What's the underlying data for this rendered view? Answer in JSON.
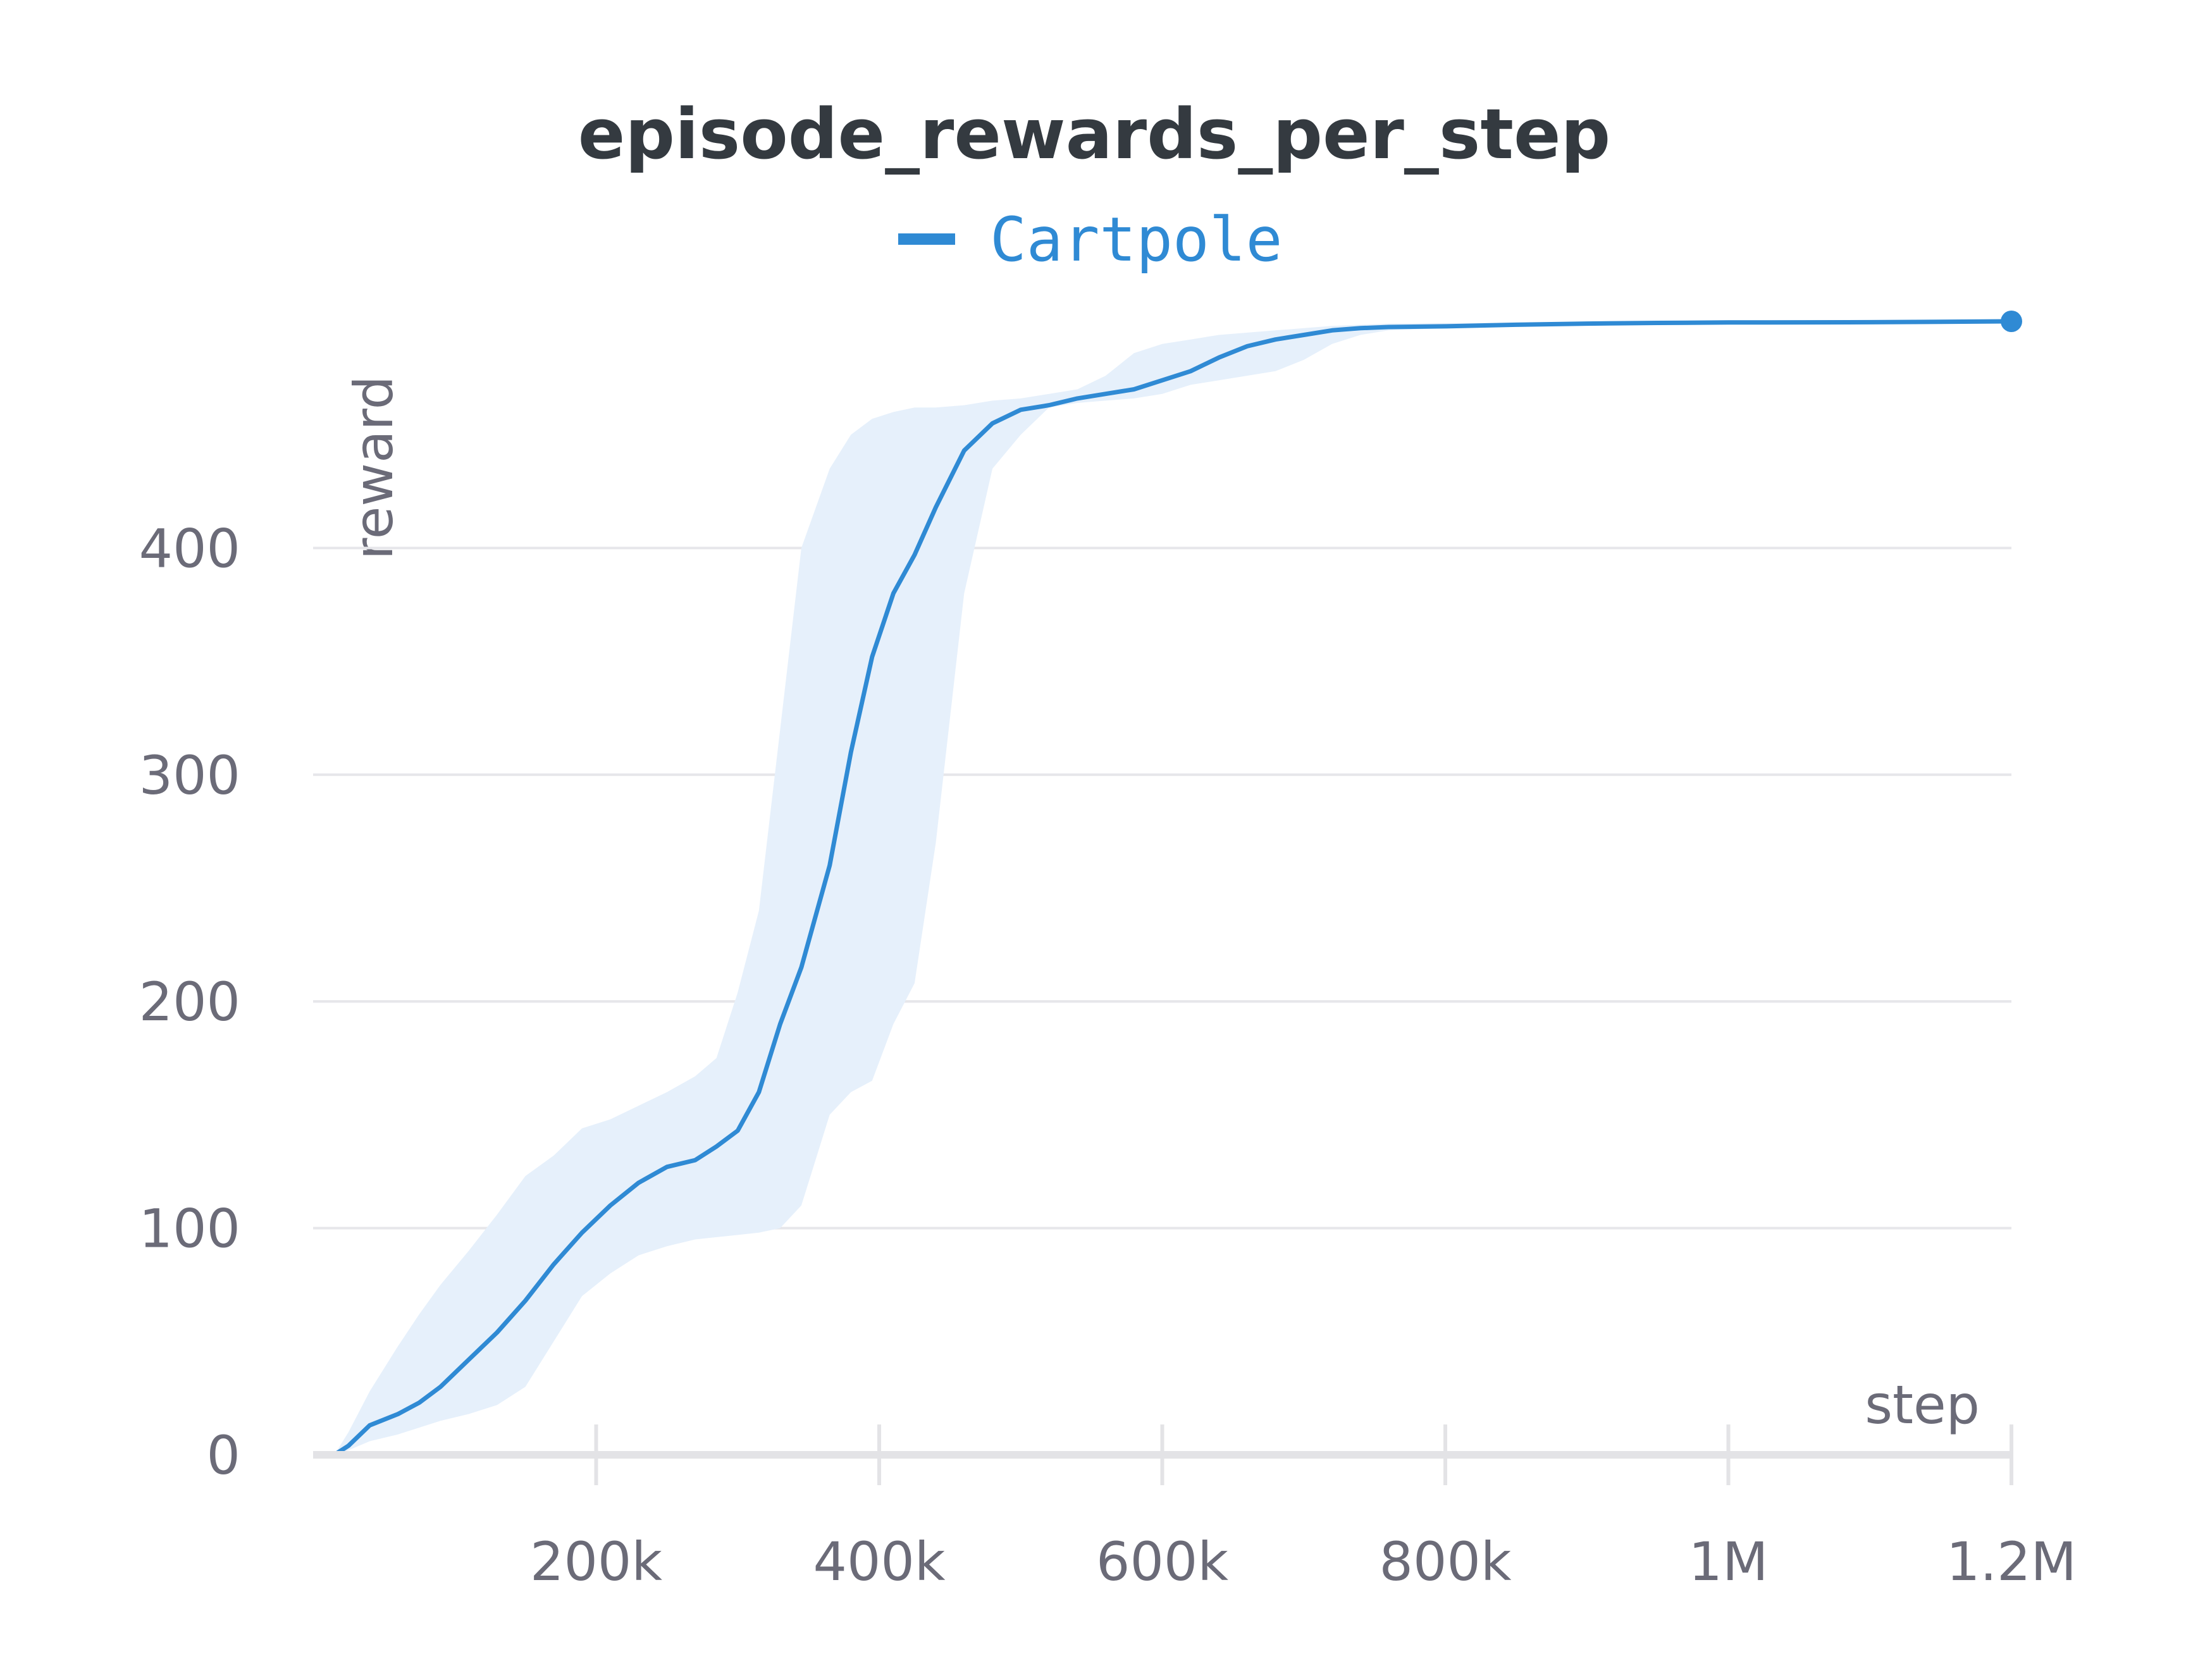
{
  "chart_data": {
    "type": "line",
    "title": "episode_rewards_per_step",
    "xlabel": "step",
    "ylabel": "reward",
    "xlim": [
      0,
      1200000
    ],
    "ylim": [
      0,
      500
    ],
    "grid": true,
    "legend_position": "top-center",
    "x_ticks": [
      {
        "value": 200000,
        "label": "200k"
      },
      {
        "value": 400000,
        "label": "400k"
      },
      {
        "value": 600000,
        "label": "600k"
      },
      {
        "value": 800000,
        "label": "800k"
      },
      {
        "value": 1000000,
        "label": "1M"
      },
      {
        "value": 1200000,
        "label": "1.2M"
      }
    ],
    "y_ticks": [
      {
        "value": 0,
        "label": "0"
      },
      {
        "value": 100,
        "label": "100"
      },
      {
        "value": 200,
        "label": "200"
      },
      {
        "value": 300,
        "label": "300"
      },
      {
        "value": 400,
        "label": "400"
      }
    ],
    "series": [
      {
        "name": "Cartpole",
        "color": "#2f8ad4",
        "band_color": "#e6f0fb",
        "x": [
          15000,
          25000,
          40000,
          60000,
          75000,
          90000,
          110000,
          130000,
          150000,
          170000,
          190000,
          210000,
          230000,
          250000,
          270000,
          285000,
          300000,
          315000,
          330000,
          345000,
          365000,
          380000,
          395000,
          410000,
          425000,
          440000,
          460000,
          480000,
          500000,
          520000,
          540000,
          560000,
          580000,
          600000,
          620000,
          640000,
          660000,
          680000,
          700000,
          720000,
          740000,
          760000,
          800000,
          850000,
          900000,
          950000,
          1000000,
          1100000,
          1150000,
          1200000
        ],
        "values": [
          0,
          4,
          13,
          18,
          23,
          30,
          42,
          54,
          68,
          84,
          98,
          110,
          120,
          127,
          130,
          136,
          143,
          160,
          190,
          215,
          260,
          310,
          352,
          380,
          397,
          418,
          443,
          455,
          461,
          463,
          466,
          468,
          470,
          474,
          478,
          484,
          489,
          492,
          494,
          496,
          497,
          497.5,
          497.8,
          498.5,
          499,
          499.3,
          499.5,
          499.6,
          499.8,
          500
        ],
        "lower": [
          0,
          2,
          6,
          9,
          12,
          15,
          18,
          22,
          30,
          50,
          70,
          80,
          88,
          92,
          95,
          96,
          97,
          98,
          100,
          110,
          150,
          160,
          165,
          190,
          208,
          270,
          380,
          435,
          450,
          462,
          464,
          465,
          466,
          468,
          472,
          474,
          476,
          478,
          483,
          490,
          494,
          496,
          497,
          498,
          499,
          499.2,
          499.4,
          499.5,
          499.7,
          500
        ],
        "upper": [
          0,
          10,
          28,
          48,
          62,
          75,
          90,
          106,
          123,
          132,
          144,
          148,
          154,
          160,
          167,
          175,
          204,
          240,
          320,
          400,
          435,
          450,
          457,
          460,
          462,
          462,
          463,
          465,
          466,
          468,
          470,
          476,
          486,
          490,
          492,
          494,
          495,
          496,
          497,
          498,
          498.5,
          499,
          499.2,
          499.4,
          499.6,
          499.7,
          499.8,
          499.9,
          500,
          500
        ]
      }
    ]
  }
}
